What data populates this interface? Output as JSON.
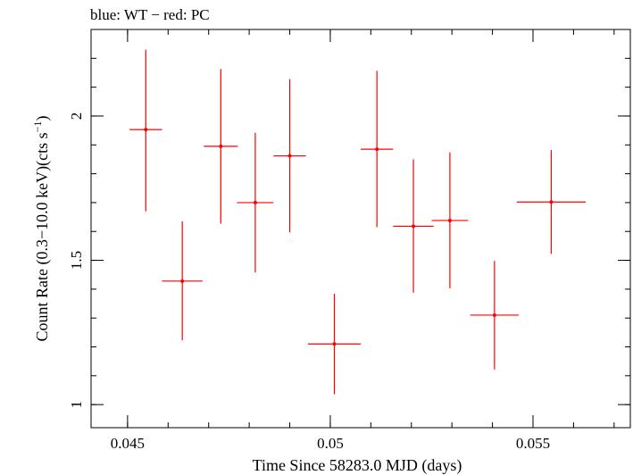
{
  "chart_data": {
    "type": "scatter",
    "title": "blue: WT − red: PC",
    "xlabel": "Time Since 58283.0 MJD (days)",
    "ylabel_main": "Count Rate (0.3−10.0 keV)(cts s",
    "ylabel_sup": "−1",
    "ylabel_close": ")",
    "xlim": [
      0.0441,
      0.0574
    ],
    "ylim": [
      0.92,
      2.3
    ],
    "x_ticks": [
      {
        "value": 0.045,
        "label": "0.045"
      },
      {
        "value": 0.05,
        "label": "0.05"
      },
      {
        "value": 0.055,
        "label": "0.055"
      }
    ],
    "y_ticks": [
      {
        "value": 1,
        "label": "1"
      },
      {
        "value": 1.5,
        "label": "1.5"
      },
      {
        "value": 2,
        "label": "2"
      }
    ],
    "x_minor_step": 0.001,
    "y_minor_step": 0.1,
    "series": [
      {
        "color": "#ff0000",
        "points": [
          {
            "x": 0.04545,
            "xerr": 0.0004,
            "y": 1.953,
            "yerr_low": 0.283,
            "yerr_high": 0.277
          },
          {
            "x": 0.04635,
            "xerr": 0.0005,
            "y": 1.428,
            "yerr_low": 0.205,
            "yerr_high": 0.207
          },
          {
            "x": 0.0473,
            "xerr": 0.00042,
            "y": 1.895,
            "yerr_low": 0.268,
            "yerr_high": 0.268
          },
          {
            "x": 0.04815,
            "xerr": 0.00045,
            "y": 1.7,
            "yerr_low": 0.242,
            "yerr_high": 0.242
          },
          {
            "x": 0.049,
            "xerr": 0.0004,
            "y": 1.862,
            "yerr_low": 0.265,
            "yerr_high": 0.266
          },
          {
            "x": 0.0501,
            "xerr": 0.00065,
            "y": 1.21,
            "yerr_low": 0.174,
            "yerr_high": 0.174
          },
          {
            "x": 0.05115,
            "xerr": 0.0004,
            "y": 1.885,
            "yerr_low": 0.27,
            "yerr_high": 0.272
          },
          {
            "x": 0.05205,
            "xerr": 0.0005,
            "y": 1.618,
            "yerr_low": 0.23,
            "yerr_high": 0.232
          },
          {
            "x": 0.05295,
            "xerr": 0.00045,
            "y": 1.638,
            "yerr_low": 0.235,
            "yerr_high": 0.236
          },
          {
            "x": 0.05405,
            "xerr": 0.0006,
            "y": 1.31,
            "yerr_low": 0.188,
            "yerr_high": 0.188
          },
          {
            "x": 0.05545,
            "xerr": 0.00085,
            "y": 1.702,
            "yerr_low": 0.18,
            "yerr_high": 0.18
          }
        ]
      }
    ]
  }
}
